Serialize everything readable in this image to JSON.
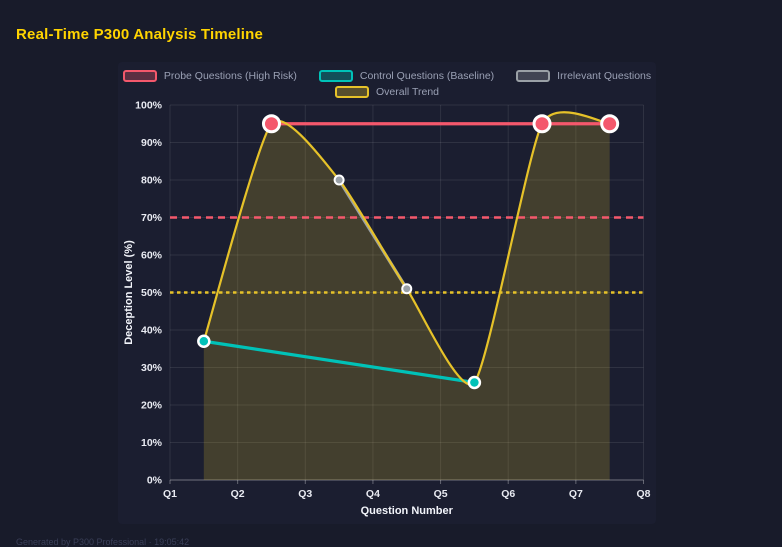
{
  "header": {
    "title": "Real-Time P300 Analysis Timeline"
  },
  "footer": {
    "text": "Generated by P300 Professional · 19:05:42"
  },
  "colors": {
    "page_bg": "#181b2a",
    "card_bg": "#1b1e30",
    "title": "#ffd400",
    "grid": "rgba(255,255,255,0.09)",
    "axis_line": "rgba(255,255,255,0.32)",
    "tick_text": "#e9ebf2",
    "axis_title_text": "#f2f4fa",
    "legend_text": "#9aa0b4"
  },
  "chart_data": {
    "type": "line",
    "title": "Real-Time P300 Analysis Timeline",
    "xlabel": "Question Number",
    "ylabel": "Deception Level (%)",
    "x_ticks": [
      "Q1",
      "Q2",
      "Q3",
      "Q4",
      "Q5",
      "Q6",
      "Q7",
      "Q8"
    ],
    "x_range": [
      1,
      8
    ],
    "ylim": [
      0,
      100
    ],
    "y_tick_step": 10,
    "y_tick_suffix": "%",
    "grid": true,
    "legend_position": "top",
    "series": [
      {
        "name": "Probe Questions (High Risk)",
        "color": "#f4586c",
        "x": [
          2.5,
          6.5,
          7.5
        ],
        "values": [
          95,
          95,
          95
        ],
        "line_width": 3.2,
        "marker_r": 8,
        "marker_stroke": 3,
        "smooth": false,
        "fill": false
      },
      {
        "name": "Control Questions (Baseline)",
        "color": "#00c2b8",
        "x": [
          1.5,
          5.5
        ],
        "values": [
          37,
          26
        ],
        "line_width": 3.2,
        "marker_r": 5.5,
        "marker_stroke": 2.5,
        "smooth": false,
        "fill": false
      },
      {
        "name": "Irrelevant Questions",
        "color": "#9aa0a6",
        "x": [
          3.5,
          4.5
        ],
        "values": [
          80,
          51
        ],
        "line_width": 3.2,
        "marker_r": 4.5,
        "marker_stroke": 2,
        "smooth": false,
        "fill": false
      },
      {
        "name": "Overall Trend",
        "color": "#e6c229",
        "x": [
          1.5,
          2.5,
          3.5,
          4.5,
          5.5,
          6.5,
          7.5
        ],
        "values": [
          37,
          95,
          80,
          51,
          26,
          95,
          95
        ],
        "line_width": 2.2,
        "marker_r": 0,
        "marker_stroke": 0,
        "smooth": true,
        "fill": true,
        "fill_opacity": 0.2
      }
    ],
    "thresholds": [
      {
        "name": "high-risk-threshold",
        "value": 70,
        "color": "#f4586c",
        "dash": "7 5",
        "width": 2.4
      },
      {
        "name": "baseline-threshold",
        "value": 50,
        "color": "#e6c229",
        "dash": "3.5 3.5",
        "width": 2.4
      }
    ]
  }
}
